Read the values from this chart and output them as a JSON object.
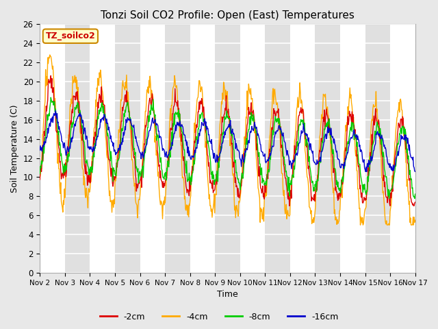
{
  "title": "Tonzi Soil CO2 Profile: Open (East) Temperatures",
  "xlabel": "Time",
  "ylabel": "Soil Temperature (C)",
  "ylim": [
    0,
    26
  ],
  "yticks": [
    0,
    2,
    4,
    6,
    8,
    10,
    12,
    14,
    16,
    18,
    20,
    22,
    24,
    26
  ],
  "legend_label": "TZ_soilco2",
  "series_labels": [
    "-2cm",
    "-4cm",
    "-8cm",
    "-16cm"
  ],
  "series_colors": [
    "#dd0000",
    "#ffaa00",
    "#00cc00",
    "#0000cc"
  ],
  "background_color": "#e8e8e8",
  "title_fontsize": 11,
  "xtick_labels": [
    "Nov 2",
    "Nov 3",
    "Nov 4",
    "Nov 5",
    "Nov 6",
    "Nov 7",
    "Nov 8",
    "Nov 9",
    "Nov 10",
    "Nov 11",
    "Nov 12",
    "Nov 13",
    "Nov 14",
    "Nov 15",
    "Nov 16",
    "Nov 17"
  ]
}
